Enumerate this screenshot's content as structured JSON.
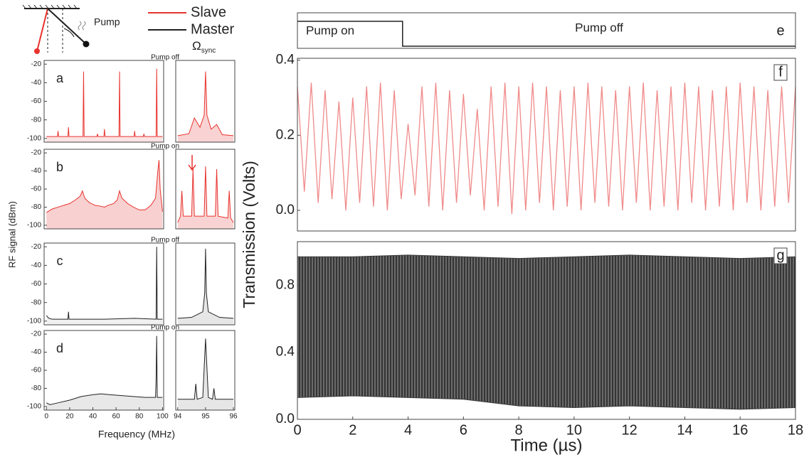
{
  "figure": {
    "legend": [
      {
        "name": "Slave",
        "color": "#e8332e"
      },
      {
        "name": "Master",
        "color": "#222222"
      }
    ],
    "pump": "Pump",
    "omega": "Ω",
    "omega_sub": "sync",
    "axis_labels": {
      "rf": "RF signal (dBm)",
      "frequency": "Frequency (MHz)",
      "transmission": "Transmission (Volts)",
      "time": "Time (µs)"
    }
  },
  "chart_data": [
    {
      "type": "line",
      "label": "a",
      "annotation": "Pump off",
      "xlim": [
        -2,
        101
      ],
      "ylim": [
        -104,
        -16
      ],
      "yticks": [
        -20,
        -40,
        -60,
        -80,
        -100
      ],
      "fill": "#fbe3e3",
      "series": [
        {
          "color": "#e8332e",
          "x": [
            0,
            5,
            9.5,
            10,
            10.5,
            18.5,
            19,
            19.5,
            31.5,
            32,
            32.5,
            43.5,
            44,
            44.5,
            49.5,
            50,
            50.5,
            62.5,
            63,
            63.5,
            75.5,
            76,
            76.5,
            83.5,
            84,
            84.5,
            94.5,
            95,
            95.5,
            100
          ],
          "values": [
            -98,
            -98,
            -98,
            -92,
            -98,
            -98,
            -88,
            -98,
            -98,
            -28,
            -98,
            -98,
            -95,
            -98,
            -98,
            -90,
            -98,
            -98,
            -28,
            -98,
            -98,
            -92,
            -98,
            -98,
            -95,
            -98,
            -98,
            -25,
            -98,
            -98
          ]
        }
      ]
    },
    {
      "type": "line",
      "xlim": [
        93.93,
        96.05
      ],
      "ylim": [
        -104,
        -16
      ],
      "fill": "#f9d3d3",
      "series": [
        {
          "color": "#e8332e",
          "x": [
            94,
            94.4,
            94.6,
            94.8,
            94.95,
            95,
            95.05,
            95.2,
            95.4,
            95.6,
            96
          ],
          "values": [
            -97,
            -95,
            -78,
            -88,
            -75,
            -28,
            -75,
            -90,
            -85,
            -96,
            -97
          ]
        }
      ]
    },
    {
      "type": "line",
      "label": "b",
      "annotation": "Pump on",
      "xlim": [
        -2,
        101
      ],
      "ylim": [
        -104,
        -16
      ],
      "yticks": [
        -20,
        -40,
        -60,
        -80,
        -100
      ],
      "fill": "#f8d0d0",
      "series": [
        {
          "color": "#e8332e",
          "x": [
            0,
            5,
            10,
            15,
            20,
            25,
            29,
            31,
            33,
            37,
            42,
            47,
            50,
            53,
            58,
            61,
            63,
            65,
            70,
            75,
            80,
            85,
            90,
            94,
            96,
            97,
            98,
            100
          ],
          "values": [
            -86,
            -82,
            -80,
            -78,
            -76,
            -72,
            -68,
            -62,
            -70,
            -75,
            -78,
            -79,
            -80,
            -78,
            -76,
            -72,
            -62,
            -70,
            -76,
            -80,
            -83,
            -83,
            -78,
            -70,
            -40,
            -28,
            -60,
            -85
          ]
        }
      ]
    },
    {
      "type": "line",
      "xlim": [
        93.93,
        96.05
      ],
      "ylim": [
        -104,
        -16
      ],
      "fill": "#f9d3d3",
      "series": [
        {
          "color": "#e8332e",
          "x": [
            94,
            94.1,
            94.15,
            94.2,
            94.5,
            94.55,
            94.6,
            94.95,
            95,
            95.05,
            95.35,
            95.4,
            95.45,
            95.8,
            95.85,
            95.9,
            96
          ],
          "values": [
            -97,
            -90,
            -62,
            -90,
            -90,
            -38,
            -90,
            -90,
            -35,
            -90,
            -90,
            -38,
            -90,
            -92,
            -62,
            -92,
            -97
          ]
        }
      ]
    },
    {
      "type": "line",
      "label": "c",
      "annotation": "Pump off",
      "xlim": [
        -2,
        101
      ],
      "ylim": [
        -104,
        -16
      ],
      "yticks": [
        -20,
        -40,
        -60,
        -80,
        -100
      ],
      "fill": "#f0f0f0",
      "series": [
        {
          "color": "#222222",
          "x": [
            0,
            2,
            5,
            18.5,
            19,
            19.5,
            50,
            76,
            94.5,
            95,
            95.5,
            100
          ],
          "values": [
            -94,
            -97,
            -98,
            -98,
            -90,
            -98,
            -98,
            -97,
            -98,
            -20,
            -98,
            -98
          ]
        }
      ]
    },
    {
      "type": "line",
      "xlim": [
        93.93,
        96.05
      ],
      "ylim": [
        -104,
        -16
      ],
      "fill": "#e6e6e6",
      "series": [
        {
          "color": "#222222",
          "x": [
            94,
            94.5,
            94.9,
            94.97,
            95,
            95.03,
            95.1,
            95.5,
            96
          ],
          "values": [
            -97,
            -96,
            -90,
            -70,
            -22,
            -70,
            -90,
            -96,
            -97
          ]
        }
      ]
    },
    {
      "type": "line",
      "label": "d",
      "annotation": "Pump on",
      "xlim": [
        -2,
        101
      ],
      "ylim": [
        -104,
        -16
      ],
      "yticks": [
        -20,
        -40,
        -60,
        -80,
        -100
      ],
      "xticks": [
        0,
        20,
        40,
        60,
        80,
        100
      ],
      "fill": "#e8e8e8",
      "series": [
        {
          "color": "#222222",
          "x": [
            0,
            3,
            10,
            20,
            30,
            40,
            47,
            55,
            65,
            75,
            85,
            94,
            94.5,
            95,
            95.5,
            100
          ],
          "values": [
            -96,
            -98,
            -96,
            -93,
            -89,
            -87,
            -86,
            -87,
            -88,
            -89,
            -90,
            -90,
            -70,
            -22,
            -90,
            -90
          ]
        }
      ]
    },
    {
      "type": "line",
      "xlim": [
        93.93,
        96.05
      ],
      "ylim": [
        -104,
        -16
      ],
      "xticks": [
        94,
        95,
        96
      ],
      "fill": "#e6e6e6",
      "series": [
        {
          "color": "#222222",
          "x": [
            94,
            94.6,
            94.65,
            94.7,
            94.9,
            95,
            95.1,
            95.25,
            95.3,
            95.35,
            96
          ],
          "values": [
            -92,
            -92,
            -75,
            -92,
            -90,
            -25,
            -90,
            -92,
            -80,
            -92,
            -92
          ]
        }
      ]
    },
    {
      "type": "step",
      "label": "e",
      "xlim": [
        0,
        18
      ],
      "switch": 3.8,
      "annotations": [
        "Pump on",
        "Pump off"
      ]
    },
    {
      "type": "line",
      "label": "f",
      "xlim": [
        0,
        18
      ],
      "ylim": [
        -0.055,
        0.405
      ],
      "yticks": [
        {
          "value": 0,
          "label": "0.0"
        },
        {
          "value": 0.2,
          "label": "0.2"
        },
        {
          "value": 0.4,
          "label": "0.4"
        }
      ],
      "series": [
        {
          "color": "#f08a8a",
          "x": [
            0,
            0.25,
            0.5,
            0.75,
            1,
            1.25,
            1.5,
            1.75,
            2,
            2.25,
            2.5,
            2.75,
            3,
            3.25,
            3.5,
            3.75,
            4,
            4.25,
            4.5,
            4.75,
            5,
            5.25,
            5.5,
            5.75,
            6,
            6.25,
            6.5,
            6.75,
            7,
            7.25,
            7.5,
            7.75,
            8,
            8.25,
            8.5,
            8.75,
            9,
            9.25,
            9.5,
            9.75,
            10,
            10.25,
            10.5,
            10.75,
            11,
            11.25,
            11.5,
            11.75,
            12,
            12.25,
            12.5,
            12.75,
            13,
            13.25,
            13.5,
            13.75,
            14,
            14.25,
            14.5,
            14.75,
            15,
            15.25,
            15.5,
            15.75,
            16,
            16.25,
            16.5,
            16.75,
            17,
            17.25,
            17.5,
            17.75,
            18
          ],
          "values": [
            0.33,
            0.05,
            0.34,
            0.02,
            0.32,
            0.03,
            0.29,
            0,
            0.3,
            0.02,
            0.33,
            0.01,
            0.34,
            0,
            0.32,
            0.03,
            0.23,
            0.04,
            0.33,
            0.01,
            0.34,
            0,
            0.32,
            0.02,
            0.31,
            0.04,
            0.27,
            0,
            0.33,
            0.01,
            0.34,
            -0.01,
            0.33,
            0,
            0.34,
            0.02,
            0.33,
            0,
            0.32,
            0.01,
            0.33,
            0,
            0.34,
            0.02,
            0.33,
            0.01,
            0.32,
            0,
            0.33,
            0.02,
            0.34,
            0,
            0.32,
            0.01,
            0.33,
            0,
            0.34,
            0.02,
            0.33,
            0,
            0.32,
            0.01,
            0.33,
            0,
            0.34,
            0.02,
            0.33,
            0,
            0.32,
            0.01,
            0.33,
            0.02,
            0.33
          ]
        }
      ]
    },
    {
      "type": "band",
      "label": "g",
      "xlim": [
        0,
        18
      ],
      "ylim": [
        0,
        1.06
      ],
      "color": "#3a3a3a",
      "yticks": [
        {
          "value": 0,
          "label": "0.0"
        },
        {
          "value": 0.4,
          "label": "0.4"
        },
        {
          "value": 0.8,
          "label": "0.8"
        }
      ],
      "xticks": [
        0,
        2,
        4,
        6,
        8,
        10,
        12,
        14,
        16,
        18
      ],
      "x": [
        0,
        2,
        4,
        6,
        8,
        10,
        12,
        14,
        16,
        18
      ],
      "upper": [
        0.97,
        0.97,
        0.98,
        0.97,
        0.96,
        0.97,
        0.98,
        0.97,
        0.96,
        0.97
      ],
      "lower": [
        0.13,
        0.14,
        0.13,
        0.12,
        0.08,
        0.07,
        0.08,
        0.07,
        0.06,
        0.07
      ]
    }
  ]
}
